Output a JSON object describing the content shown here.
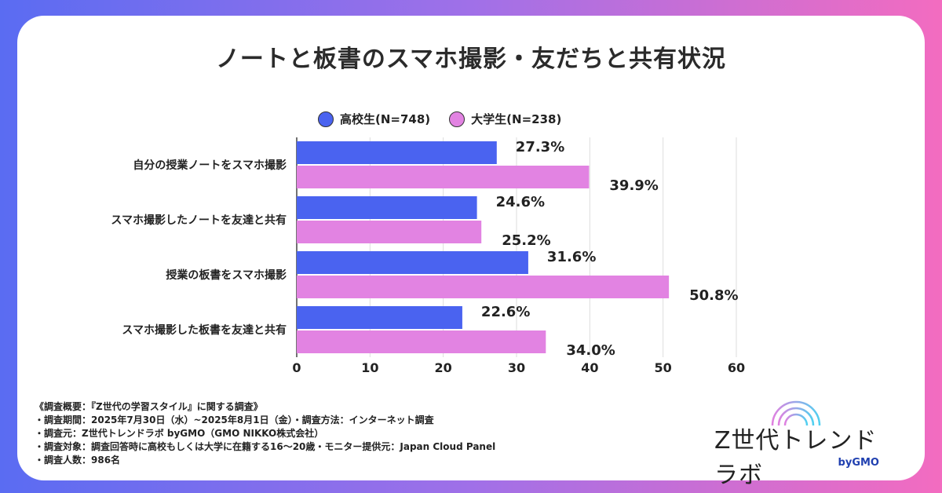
{
  "chart_data": {
    "type": "bar",
    "orientation": "horizontal",
    "title": "ノートと板書のスマホ撮影・友だちと共有状況",
    "categories": [
      "自分の授業ノートをスマホ撮影",
      "スマホ撮影したノートを友達と共有",
      "授業の板書をスマホ撮影",
      "スマホ撮影した板書を友達と共有"
    ],
    "series": [
      {
        "name": "高校生(N=748)",
        "color": "#4a63f0",
        "values": [
          27.3,
          24.6,
          31.6,
          22.6
        ]
      },
      {
        "name": "大学生(N=238)",
        "color": "#e283e2",
        "values": [
          39.9,
          25.2,
          50.8,
          34.0
        ]
      }
    ],
    "data_labels": [
      [
        "27.3%",
        "24.6%",
        "31.6%",
        "22.6%"
      ],
      [
        "39.9%",
        "25.2%",
        "50.8%",
        "34.0%"
      ]
    ],
    "xlim": [
      0,
      60
    ],
    "xticks": [
      "0",
      "10",
      "20",
      "30",
      "40",
      "50",
      "60"
    ],
    "grid": true,
    "legend_position": "top"
  },
  "notes": [
    "《調査概要：『Z世代の学習スタイル』に関する調査》",
    "・調査期間：2025年7月30日（水）~2025年8月1日（金）・調査方法：インターネット調査",
    "・調査元：Z世代トレンドラボ byGMO（GMO NIKKO株式会社）",
    "・調査対象：調査回答時に高校もしくは大学に在籍する16〜20歳・モニター提供元：Japan Cloud Panel",
    "・調査人数：986名"
  ],
  "logo": {
    "name": "Z世代トレンドラボ",
    "by": "byGMO"
  }
}
